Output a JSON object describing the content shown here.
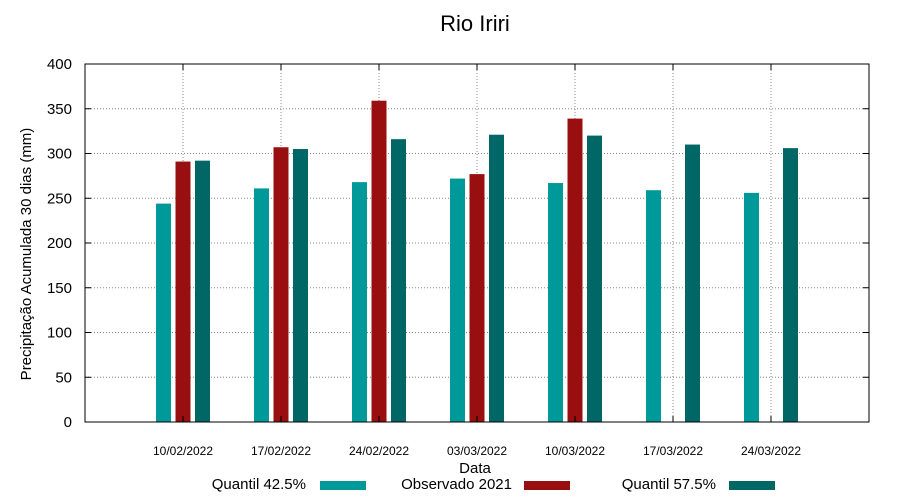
{
  "chart_data": {
    "type": "bar",
    "title": "Rio Iriri",
    "xlabel": "Data",
    "ylabel": "Precipitação Acumulada 30 dias (mm)",
    "ylim": [
      0,
      400
    ],
    "yticks": [
      0,
      50,
      100,
      150,
      200,
      250,
      300,
      350,
      400
    ],
    "grid": true,
    "legend_position": "bottom",
    "categories": [
      "10/02/2022",
      "17/02/2022",
      "24/02/2022",
      "03/03/2022",
      "10/03/2022",
      "17/03/2022",
      "24/03/2022"
    ],
    "series": [
      {
        "name": "Quantil 42.5%",
        "color": "#009999",
        "values": [
          244,
          261,
          268,
          272,
          267,
          259,
          256
        ]
      },
      {
        "name": "Observado 2021",
        "color": "#990f0f",
        "values": [
          291,
          307,
          359,
          277,
          339,
          null,
          null
        ]
      },
      {
        "name": "Quantil 57.5%",
        "color": "#006666",
        "values": [
          292,
          305,
          316,
          321,
          320,
          310,
          306
        ]
      }
    ]
  }
}
